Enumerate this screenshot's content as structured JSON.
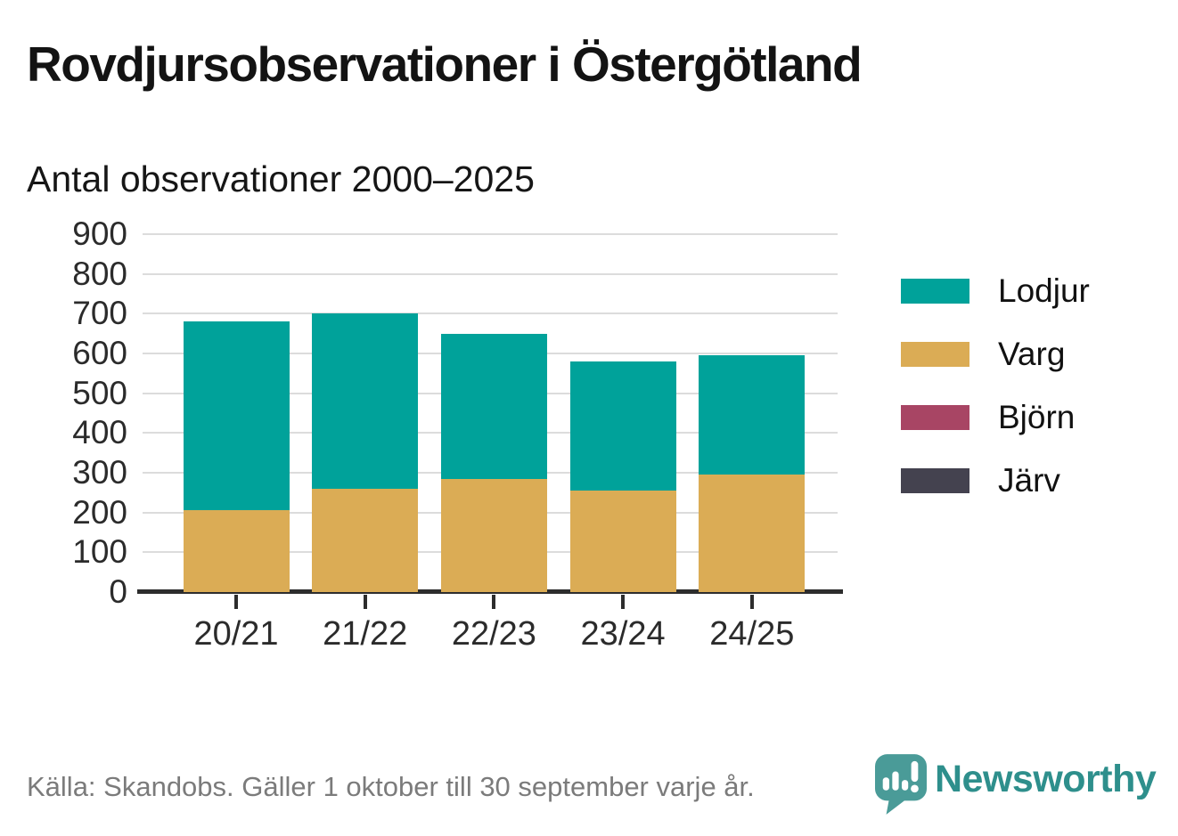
{
  "header": {
    "title": "Rovdjursobservationer i Östergötland"
  },
  "chart_data": {
    "type": "bar",
    "stacked": true,
    "subtitle": "Antal observationer 2000–2025",
    "categories": [
      "20/21",
      "21/22",
      "22/23",
      "23/24",
      "24/25"
    ],
    "series": [
      {
        "name": "Lodjur",
        "color": "#00A29A",
        "values": [
          475,
          440,
          365,
          325,
          300
        ]
      },
      {
        "name": "Varg",
        "color": "#DBAC55",
        "values": [
          205,
          260,
          285,
          255,
          295
        ]
      },
      {
        "name": "Björn",
        "color": "#A84564",
        "values": [
          0,
          0,
          0,
          0,
          0
        ]
      },
      {
        "name": "Järv",
        "color": "#44424F",
        "values": [
          0,
          0,
          0,
          0,
          0
        ]
      }
    ],
    "totals": [
      680,
      700,
      650,
      580,
      595
    ],
    "ylim": [
      0,
      900
    ],
    "ytick_step": 100,
    "grid": true,
    "legend_position": "right",
    "colors": {
      "gridline": "#dcdcdc",
      "axis": "#2d2d2d",
      "text": "#2b2b2b"
    }
  },
  "footer": {
    "source": "Källa: Skandobs. Gäller 1 oktober till 30 september varje år.",
    "brand": "Newsworthy",
    "brand_color": "#2E8F8C",
    "logo_icon": "newsworthy-speech-bubble-barchart-icon"
  }
}
